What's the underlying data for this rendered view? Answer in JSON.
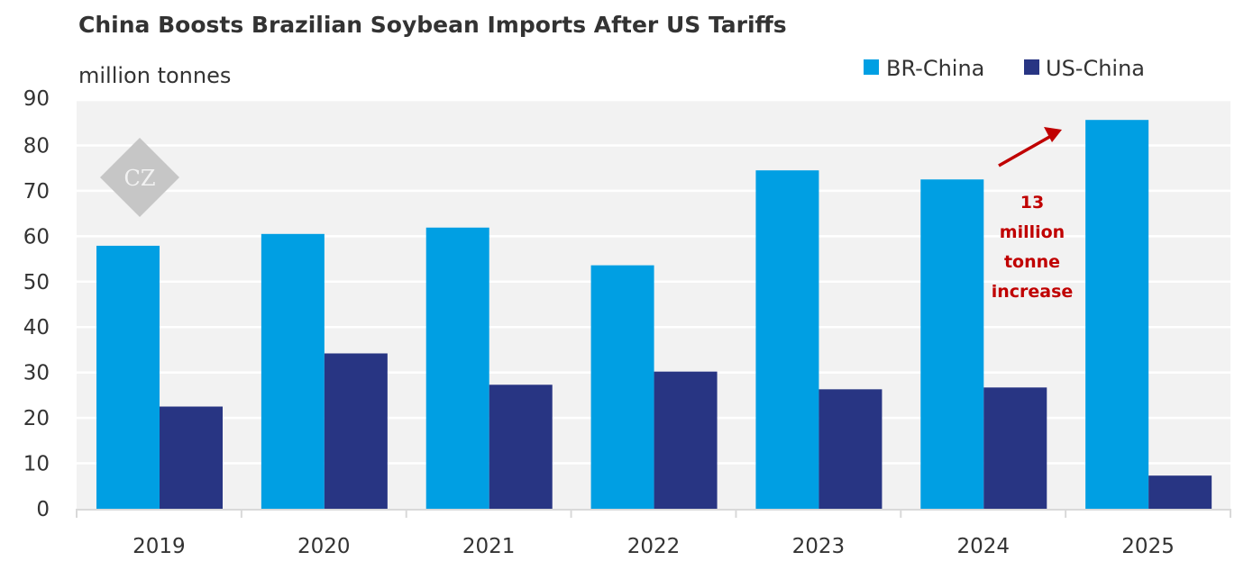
{
  "chart_data": {
    "type": "bar",
    "title": "China Boosts Brazilian Soybean Imports After US Tariffs",
    "ylabel": "million tonnes",
    "xlabel": "",
    "ylim": [
      0,
      90
    ],
    "yticks": [
      0,
      10,
      20,
      30,
      40,
      50,
      60,
      70,
      80,
      90
    ],
    "grid": true,
    "legend_position": "top-right",
    "categories": [
      "2019",
      "2020",
      "2021",
      "2022",
      "2023",
      "2024",
      "2025"
    ],
    "series": [
      {
        "name": "BR-China",
        "color": "#009fe3",
        "values": [
          57.9,
          60.5,
          61.9,
          53.6,
          74.5,
          72.5,
          85.6
        ]
      },
      {
        "name": "US-China",
        "color": "#283583",
        "values": [
          22.5,
          34.2,
          27.3,
          30.2,
          26.3,
          26.7,
          7.3
        ]
      }
    ],
    "annotation": {
      "lines": [
        "13",
        "million",
        "tonne",
        "increase"
      ],
      "color": "#c00000",
      "arrow": "up-right toward 2025 BR-China bar"
    },
    "watermark": "CZ"
  }
}
